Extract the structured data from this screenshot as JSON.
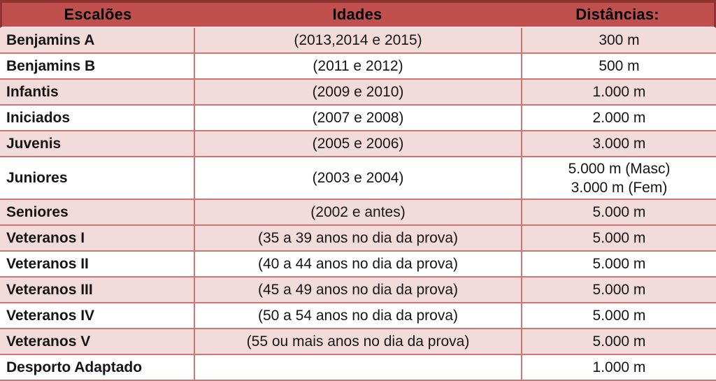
{
  "table": {
    "columns": [
      {
        "key": "escalao",
        "label": "Escalões"
      },
      {
        "key": "idades",
        "label": "Idades"
      },
      {
        "key": "distancia",
        "label": "Distâncias:"
      }
    ],
    "rows": [
      {
        "escalao": "Benjamins A",
        "idades": "(2013,2014 e 2015)",
        "distancia": [
          "300 m"
        ],
        "shade": "pink",
        "tall": false
      },
      {
        "escalao": "Benjamins B",
        "idades": "(2011 e 2012)",
        "distancia": [
          "500 m"
        ],
        "shade": "white",
        "tall": false
      },
      {
        "escalao": "Infantis",
        "idades": "(2009 e 2010)",
        "distancia": [
          "1.000 m"
        ],
        "shade": "pink",
        "tall": false
      },
      {
        "escalao": "Iniciados",
        "idades": "(2007 e 2008)",
        "distancia": [
          "2.000 m"
        ],
        "shade": "white",
        "tall": false
      },
      {
        "escalao": "Juvenis",
        "idades": "(2005 e 2006)",
        "distancia": [
          "3.000 m"
        ],
        "shade": "pink",
        "tall": false
      },
      {
        "escalao": "Juniores",
        "idades": "(2003 e 2004)",
        "distancia": [
          "5.000 m (Masc)",
          "3.000 m (Fem)"
        ],
        "shade": "white",
        "tall": true
      },
      {
        "escalao": "Seniores",
        "idades": "(2002 e antes)",
        "distancia": [
          "5.000 m"
        ],
        "shade": "pink",
        "tall": false
      },
      {
        "escalao": "Veteranos I",
        "idades": "(35 a 39 anos no dia da prova)",
        "distancia": [
          "5.000 m"
        ],
        "shade": "pink",
        "tall": false
      },
      {
        "escalao": "Veteranos II",
        "idades": "(40 a 44 anos no dia da prova)",
        "distancia": [
          "5.000 m"
        ],
        "shade": "white",
        "tall": false
      },
      {
        "escalao": "Veteranos III",
        "idades": "(45 a 49 anos no dia da prova)",
        "distancia": [
          "5.000 m"
        ],
        "shade": "pink",
        "tall": false
      },
      {
        "escalao": "Veteranos IV",
        "idades": "(50 a 54 anos no dia da prova)",
        "distancia": [
          "5.000 m"
        ],
        "shade": "white",
        "tall": false
      },
      {
        "escalao": "Veteranos V",
        "idades": "(55 ou mais anos no dia da prova)",
        "distancia": [
          "5.000 m"
        ],
        "shade": "pink",
        "tall": false
      },
      {
        "escalao": "Desporto Adaptado",
        "idades": "",
        "distancia": [
          "1.000 m"
        ],
        "shade": "white",
        "tall": false
      }
    ],
    "colors": {
      "header_bg": "#C0504D",
      "header_border": "#8E3330",
      "header_text": "#000000",
      "row_pink": "#F2DCDB",
      "row_white": "#FFFFFF",
      "grid_line": "#CD7672",
      "text": "#151515"
    }
  }
}
